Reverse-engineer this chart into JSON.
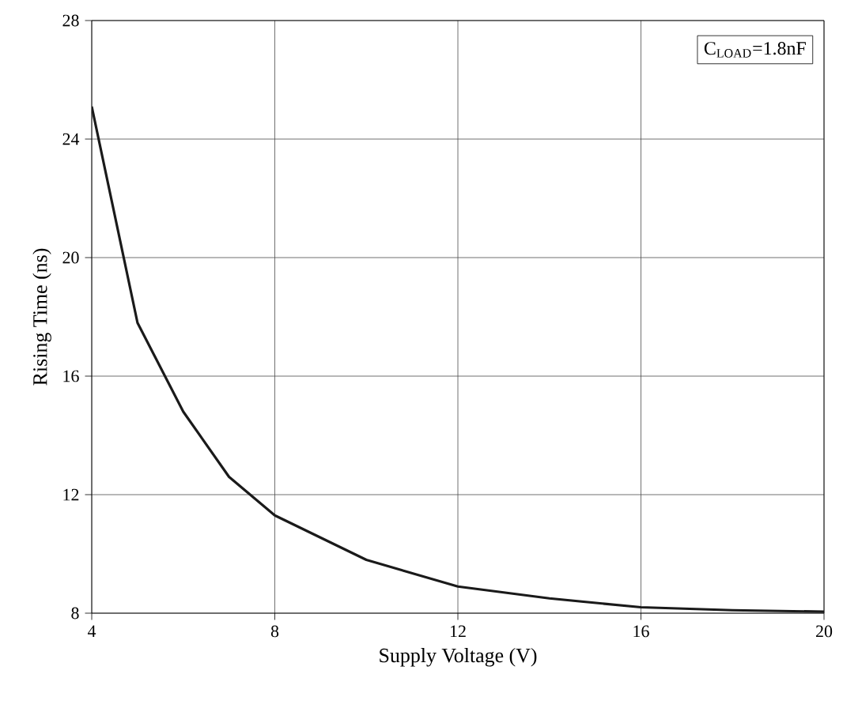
{
  "chart_data": {
    "type": "line",
    "xlabel": "Supply Voltage (V)",
    "ylabel": "Rising Time (ns)",
    "annotations": [
      "C$_{LOAD}$=1.8nF"
    ],
    "x": [
      4,
      5,
      6,
      7,
      8,
      10,
      12,
      14,
      16,
      18,
      20
    ],
    "series": [
      {
        "color": "#1a1a1a",
        "values": [
          25.1,
          17.8,
          14.8,
          12.6,
          11.3,
          9.8,
          8.9,
          8.5,
          8.2,
          8.1,
          8.05
        ]
      }
    ],
    "xlim": [
      4,
      20
    ],
    "ylim": [
      8,
      28
    ],
    "xticks": [
      4,
      8,
      12,
      16,
      20
    ],
    "yticks": [
      8,
      12,
      16,
      20,
      24,
      28
    ],
    "grid": true,
    "marker": "none",
    "line_style": "solid"
  }
}
